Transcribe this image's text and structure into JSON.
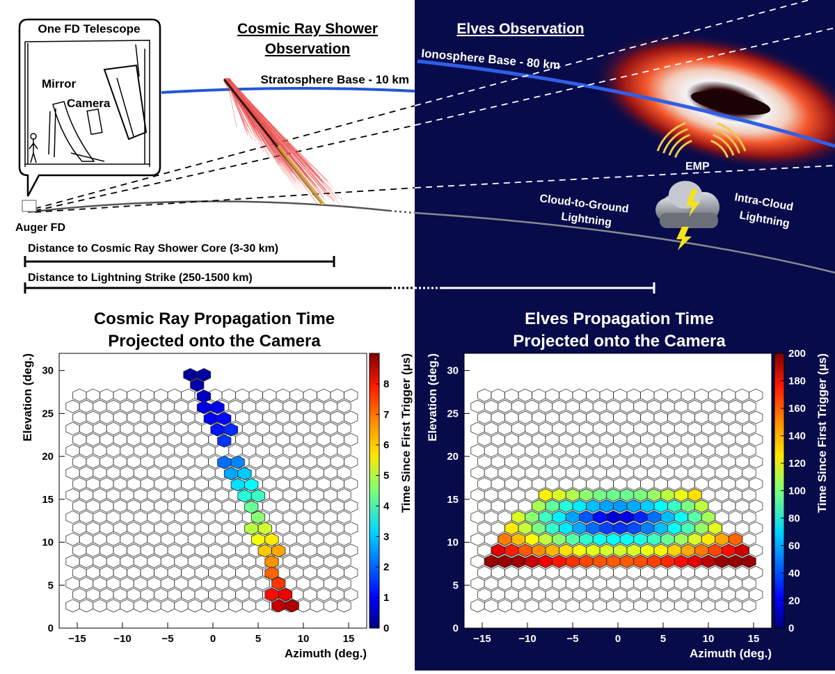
{
  "scene": {
    "telescope_title": "One FD Telescope",
    "mirror_label": "Mirror",
    "camera_label": "Camera",
    "auger_fd_label": "Auger FD",
    "cosmic_title_line1": "Cosmic Ray Shower",
    "cosmic_title_line2": "Observation",
    "stratosphere_label": "Stratosphere Base - 10 km",
    "elves_title": "Elves Observation",
    "ionosphere_label": "Ionosphere Base - 80 km",
    "emp_label": "EMP",
    "cg_line1": "Cloud-to-Ground",
    "cg_line2": "Lightning",
    "ic_line1": "Intra-Cloud",
    "ic_line2": "Lightning",
    "distance_core_label": "Distance to Cosmic Ray Shower Core (3-30 km)",
    "distance_lightning_label": "Distance to Lightning Strike (250-1500 km)",
    "colors": {
      "night_bg": "#070b4a",
      "stratosphere_line": "#2456d6",
      "ionosphere_line": "#2f5fe8",
      "emp_arcs": "#f2c84b",
      "lightning": "#f5e31a"
    }
  },
  "chart_data": [
    {
      "type": "heatmap",
      "title_line1": "Cosmic Ray Propagation Time",
      "title_line2": "Projected onto the Camera",
      "xlabel": "Azimuth (deg.)",
      "ylabel": "Elevation (deg.)",
      "colorbar_label": "Time Since First Trigger (μs)",
      "xlim": [
        -17,
        17
      ],
      "ylim": [
        0,
        32
      ],
      "xticks": [
        "−15",
        "−10",
        "−5",
        "0",
        "5",
        "10",
        "15"
      ],
      "yticks": [
        "0",
        "5",
        "10",
        "15",
        "20",
        "25",
        "30"
      ],
      "colorbar_range": [
        0,
        9
      ],
      "colorbar_ticks": [
        "0",
        "1",
        "2",
        "3",
        "4",
        "5",
        "6",
        "7",
        "8"
      ],
      "grid": "hexagonal camera pixels, 22 columns × 20 rows",
      "hit_pixels": [
        {
          "az": -2.5,
          "el": 29.5,
          "t": 0.2
        },
        {
          "az": -1.0,
          "el": 29.5,
          "t": 0.3
        },
        {
          "az": -1.75,
          "el": 28.3,
          "t": 0.4
        },
        {
          "az": -1.0,
          "el": 27.0,
          "t": 0.6
        },
        {
          "az": -1.0,
          "el": 25.7,
          "t": 0.9
        },
        {
          "az": 0.5,
          "el": 25.7,
          "t": 1.0
        },
        {
          "az": -0.25,
          "el": 24.4,
          "t": 1.1
        },
        {
          "az": 1.25,
          "el": 24.4,
          "t": 1.2
        },
        {
          "az": 0.5,
          "el": 23.1,
          "t": 1.3
        },
        {
          "az": 2.0,
          "el": 23.1,
          "t": 1.5
        },
        {
          "az": 1.25,
          "el": 21.8,
          "t": 1.6
        },
        {
          "az": 1.25,
          "el": 19.3,
          "t": 2.1
        },
        {
          "az": 2.75,
          "el": 19.3,
          "t": 2.3
        },
        {
          "az": 2.0,
          "el": 18.0,
          "t": 2.6
        },
        {
          "az": 3.5,
          "el": 18.0,
          "t": 2.9
        },
        {
          "az": 2.75,
          "el": 16.7,
          "t": 3.1
        },
        {
          "az": 4.25,
          "el": 16.7,
          "t": 3.4
        },
        {
          "az": 3.5,
          "el": 15.4,
          "t": 3.7
        },
        {
          "az": 5.0,
          "el": 15.4,
          "t": 3.9
        },
        {
          "az": 4.25,
          "el": 14.1,
          "t": 4.3
        },
        {
          "az": 5.0,
          "el": 12.9,
          "t": 4.6
        },
        {
          "az": 4.25,
          "el": 11.6,
          "t": 5.0
        },
        {
          "az": 5.75,
          "el": 11.6,
          "t": 5.2
        },
        {
          "az": 5.0,
          "el": 10.3,
          "t": 5.5
        },
        {
          "az": 6.5,
          "el": 10.3,
          "t": 5.8
        },
        {
          "az": 5.75,
          "el": 9.0,
          "t": 6.1
        },
        {
          "az": 7.25,
          "el": 9.0,
          "t": 6.4
        },
        {
          "az": 6.5,
          "el": 7.7,
          "t": 6.6
        },
        {
          "az": 6.5,
          "el": 6.4,
          "t": 7.0
        },
        {
          "az": 7.25,
          "el": 5.2,
          "t": 7.4
        },
        {
          "az": 6.5,
          "el": 3.9,
          "t": 7.8
        },
        {
          "az": 8.0,
          "el": 3.9,
          "t": 8.0
        },
        {
          "az": 7.25,
          "el": 2.6,
          "t": 8.4
        },
        {
          "az": 8.75,
          "el": 2.6,
          "t": 8.6
        }
      ]
    },
    {
      "type": "heatmap",
      "title_line1": "Elves Propagation Time",
      "title_line2": "Projected onto the Camera",
      "xlabel": "Azimuth (deg.)",
      "ylabel": "Elevation (deg.)",
      "colorbar_label": "Time Since First Trigger (μs)",
      "xlim": [
        -17,
        17
      ],
      "ylim": [
        0,
        32
      ],
      "xticks": [
        "−15",
        "−10",
        "−5",
        "0",
        "5",
        "10",
        "15"
      ],
      "yticks": [
        "0",
        "5",
        "10",
        "15",
        "20",
        "25",
        "30"
      ],
      "colorbar_range": [
        0,
        200
      ],
      "colorbar_ticks": [
        "0",
        "20",
        "40",
        "60",
        "80",
        "100",
        "120",
        "140",
        "160",
        "180",
        "200"
      ],
      "grid": "hexagonal camera pixels, 22 columns × 20 rows",
      "elve_band": {
        "rows_el": [
          15.4,
          14.1,
          12.9,
          11.6,
          10.3,
          9.0,
          7.7
        ],
        "az_extent": [
          -15,
          15
        ],
        "center_az": 0,
        "min_time": 5,
        "max_time": 195
      }
    }
  ]
}
